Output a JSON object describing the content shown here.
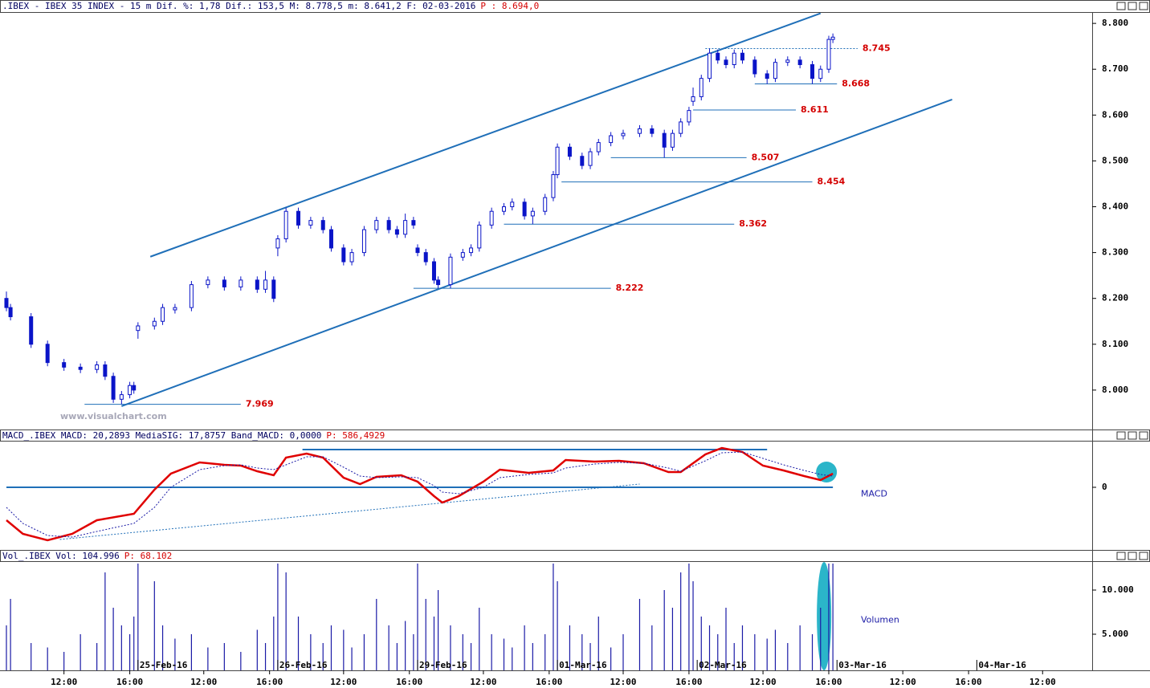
{
  "chart_data": [
    {
      "type": "candlestick",
      "title": ".IBEX - IBEX 35 INDEX -  15 m Dif. %: 1,78 Dif.: 153,5 M: 8.778,5 m: 8.641,2 F: 02-03-2016",
      "price_label": "P : 8.694,0",
      "watermark": "www.visualchart.com",
      "xlim": [
        -1.56,
        264.06
      ],
      "ylim": [
        7.914,
        8.823
      ],
      "yticks": [
        {
          "value": 8.0,
          "label": "8.000"
        },
        {
          "value": 8.1,
          "label": "8.100"
        },
        {
          "value": 8.2,
          "label": "8.200"
        },
        {
          "value": 8.3,
          "label": "8.300"
        },
        {
          "value": 8.4,
          "label": "8.400"
        },
        {
          "value": 8.5,
          "label": "8.500"
        },
        {
          "value": 8.6,
          "label": "8.600"
        },
        {
          "value": 8.7,
          "label": "8.700"
        },
        {
          "value": 8.8,
          "label": "8.800"
        }
      ],
      "up_color": "#ffffff",
      "down_color": "#0a14c8",
      "line_color": "#1f6fb8",
      "level_label_color": "#d40000",
      "x": [
        0,
        1,
        6,
        10,
        14,
        18,
        22,
        24,
        26,
        28,
        30,
        31,
        32,
        36,
        38,
        41,
        45,
        49,
        53,
        57,
        61,
        63,
        65,
        66,
        68,
        71,
        74,
        77,
        79,
        82,
        84,
        87,
        90,
        93,
        95,
        97,
        99,
        100,
        102,
        104,
        105,
        108,
        111,
        113,
        115,
        118,
        121,
        123,
        126,
        128,
        131,
        133,
        134,
        137,
        140,
        142,
        144,
        147,
        150,
        154,
        157,
        160,
        162,
        164,
        166,
        167,
        169,
        171,
        173,
        175,
        177,
        179,
        182,
        185,
        187,
        190,
        193,
        196,
        198,
        200,
        201
      ],
      "candles": [
        [
          8.2,
          8.215,
          8.172,
          8.18
        ],
        [
          8.18,
          8.188,
          8.152,
          8.16
        ],
        [
          8.16,
          8.168,
          8.092,
          8.1
        ],
        [
          8.1,
          8.108,
          8.052,
          8.06
        ],
        [
          8.06,
          8.068,
          8.042,
          8.05
        ],
        [
          8.05,
          8.058,
          8.037,
          8.045
        ],
        [
          8.045,
          8.063,
          8.037,
          8.055
        ],
        [
          8.055,
          8.063,
          8.022,
          8.03
        ],
        [
          8.03,
          8.038,
          7.972,
          7.98
        ],
        [
          7.98,
          7.998,
          7.969,
          7.99
        ],
        [
          7.99,
          8.018,
          7.982,
          8.01
        ],
        [
          8.01,
          8.018,
          7.992,
          8.0
        ],
        [
          8.13,
          8.148,
          8.112,
          8.14
        ],
        [
          8.14,
          8.158,
          8.132,
          8.15
        ],
        [
          8.15,
          8.188,
          8.142,
          8.18
        ],
        [
          8.175,
          8.188,
          8.167,
          8.18
        ],
        [
          8.18,
          8.238,
          8.172,
          8.23
        ],
        [
          8.23,
          8.248,
          8.222,
          8.24
        ],
        [
          8.24,
          8.248,
          8.217,
          8.225
        ],
        [
          8.225,
          8.248,
          8.217,
          8.24
        ],
        [
          8.24,
          8.248,
          8.212,
          8.22
        ],
        [
          8.22,
          8.26,
          8.212,
          8.24
        ],
        [
          8.24,
          8.248,
          8.192,
          8.2
        ],
        [
          8.31,
          8.338,
          8.292,
          8.33
        ],
        [
          8.33,
          8.398,
          8.322,
          8.39
        ],
        [
          8.39,
          8.398,
          8.352,
          8.36
        ],
        [
          8.36,
          8.378,
          8.352,
          8.37
        ],
        [
          8.37,
          8.378,
          8.342,
          8.35
        ],
        [
          8.35,
          8.358,
          8.302,
          8.31
        ],
        [
          8.31,
          8.318,
          8.272,
          8.28
        ],
        [
          8.28,
          8.308,
          8.272,
          8.3
        ],
        [
          8.3,
          8.358,
          8.292,
          8.35
        ],
        [
          8.35,
          8.378,
          8.342,
          8.37
        ],
        [
          8.37,
          8.378,
          8.342,
          8.35
        ],
        [
          8.35,
          8.358,
          8.332,
          8.34
        ],
        [
          8.34,
          8.385,
          8.332,
          8.37
        ],
        [
          8.37,
          8.378,
          8.352,
          8.36
        ],
        [
          8.31,
          8.318,
          8.292,
          8.3
        ],
        [
          8.3,
          8.308,
          8.272,
          8.28
        ],
        [
          8.28,
          8.288,
          8.232,
          8.24
        ],
        [
          8.24,
          8.248,
          8.222,
          8.23
        ],
        [
          8.23,
          8.298,
          8.222,
          8.29
        ],
        [
          8.29,
          8.308,
          8.282,
          8.3
        ],
        [
          8.3,
          8.318,
          8.292,
          8.31
        ],
        [
          8.31,
          8.368,
          8.302,
          8.36
        ],
        [
          8.36,
          8.398,
          8.352,
          8.39
        ],
        [
          8.39,
          8.408,
          8.382,
          8.4
        ],
        [
          8.4,
          8.418,
          8.392,
          8.41
        ],
        [
          8.41,
          8.418,
          8.372,
          8.38
        ],
        [
          8.38,
          8.398,
          8.362,
          8.39
        ],
        [
          8.39,
          8.428,
          8.382,
          8.42
        ],
        [
          8.42,
          8.478,
          8.412,
          8.47
        ],
        [
          8.47,
          8.538,
          8.462,
          8.53
        ],
        [
          8.53,
          8.538,
          8.502,
          8.51
        ],
        [
          8.51,
          8.518,
          8.482,
          8.49
        ],
        [
          8.49,
          8.528,
          8.482,
          8.52
        ],
        [
          8.52,
          8.548,
          8.512,
          8.54
        ],
        [
          8.54,
          8.563,
          8.532,
          8.555
        ],
        [
          8.555,
          8.568,
          8.547,
          8.56
        ],
        [
          8.56,
          8.578,
          8.552,
          8.57
        ],
        [
          8.57,
          8.578,
          8.552,
          8.56
        ],
        [
          8.56,
          8.568,
          8.507,
          8.53
        ],
        [
          8.53,
          8.568,
          8.522,
          8.56
        ],
        [
          8.56,
          8.593,
          8.552,
          8.585
        ],
        [
          8.585,
          8.618,
          8.577,
          8.61
        ],
        [
          8.63,
          8.66,
          8.62,
          8.64
        ],
        [
          8.64,
          8.688,
          8.632,
          8.68
        ],
        [
          8.68,
          8.745,
          8.672,
          8.735
        ],
        [
          8.735,
          8.743,
          8.712,
          8.72
        ],
        [
          8.72,
          8.728,
          8.702,
          8.71
        ],
        [
          8.71,
          8.743,
          8.702,
          8.735
        ],
        [
          8.735,
          8.743,
          8.712,
          8.72
        ],
        [
          8.72,
          8.728,
          8.682,
          8.69
        ],
        [
          8.69,
          8.698,
          8.668,
          8.68
        ],
        [
          8.68,
          8.723,
          8.672,
          8.715
        ],
        [
          8.715,
          8.728,
          8.707,
          8.72
        ],
        [
          8.72,
          8.728,
          8.702,
          8.71
        ],
        [
          8.71,
          8.718,
          8.668,
          8.68
        ],
        [
          8.68,
          8.708,
          8.672,
          8.7
        ],
        [
          8.7,
          8.773,
          8.692,
          8.765
        ],
        [
          8.765,
          8.778,
          8.757,
          8.77
        ]
      ],
      "lines": [
        {
          "points": [
            [
              35,
              8.291
            ],
            [
              198,
              8.822
            ]
          ],
          "dash": false
        },
        {
          "points": [
            [
              28,
              7.965
            ],
            [
              230,
              8.634
            ]
          ],
          "dash": false
        }
      ],
      "levels": [
        {
          "value": 7.969,
          "x": [
            19,
            57
          ]
        },
        {
          "value": 8.222,
          "x": [
            99,
            147
          ]
        },
        {
          "value": 8.362,
          "x": [
            121,
            177
          ]
        },
        {
          "value": 8.454,
          "x": [
            135,
            196
          ]
        },
        {
          "value": 8.507,
          "x": [
            147,
            180
          ]
        },
        {
          "value": 8.611,
          "x": [
            167,
            192
          ]
        },
        {
          "value": 8.668,
          "x": [
            182,
            202
          ]
        },
        {
          "value": 8.745,
          "x": [
            170,
            207
          ],
          "dash": true
        }
      ]
    },
    {
      "type": "line",
      "title": "MACD_.IBEX MACD: 20,2893 MediaSIG: 17,8757 Band_MACD: 0,0000",
      "price_label": "P: 586,4929",
      "annotation": "MACD",
      "highlight_color": "#2bb5c9",
      "line_color": "#1f6fb8",
      "xlim": [
        -1.56,
        264.06
      ],
      "ylim": [
        -78,
        57
      ],
      "yticks": [
        0
      ],
      "x": [
        0,
        4,
        10,
        16,
        22,
        31,
        36,
        40,
        47,
        53,
        57,
        61,
        65,
        68,
        73,
        77,
        82,
        86,
        90,
        96,
        100,
        104,
        106,
        110,
        116,
        120,
        127,
        133,
        136,
        143,
        149,
        155,
        161,
        164,
        170,
        174,
        179,
        184,
        189,
        194,
        198,
        201
      ],
      "series": [
        {
          "color": "#e00000",
          "dash": false,
          "values": [
            -41,
            -58,
            -66,
            -58,
            -41,
            -33,
            -3,
            17,
            31,
            28,
            27,
            20,
            15,
            37,
            42,
            37,
            12,
            4,
            13,
            15,
            7,
            -11,
            -19,
            -11,
            7,
            22,
            18,
            21,
            34,
            32,
            33,
            30,
            19,
            19,
            41,
            49,
            44,
            27,
            21,
            14,
            9,
            17
          ]
        },
        {
          "color": "#1a1aa6",
          "dash": true,
          "values": [
            -25,
            -45,
            -60,
            -62,
            -55,
            -45,
            -25,
            0,
            22,
            27,
            28,
            24,
            22,
            28,
            38,
            38,
            25,
            14,
            12,
            13,
            12,
            2,
            -6,
            -8,
            0,
            12,
            16,
            18,
            24,
            29,
            31,
            30,
            24,
            20,
            33,
            43,
            44,
            36,
            28,
            21,
            16,
            14
          ]
        }
      ],
      "lines": [
        {
          "points": [
            [
              72,
              47
            ],
            [
              185,
              47
            ]
          ],
          "dash": false
        },
        {
          "points": [
            [
              0,
              0
            ],
            [
              201,
              0
            ]
          ],
          "dash": false
        },
        {
          "points": [
            [
              13,
              -65
            ],
            [
              154,
              4
            ]
          ],
          "dash": true
        }
      ]
    },
    {
      "type": "bar",
      "title": "Vol_.IBEX Vol: 104.996",
      "price_label": "P: 68.102",
      "annotation": "Volumen",
      "color": "#1a1aa6",
      "highlight_color": "#2bb5c9",
      "xlim": [
        -1.56,
        264.06
      ],
      "ylim": [
        909,
        13182
      ],
      "yticks": [
        {
          "value": 5000,
          "label": "5.000"
        },
        {
          "value": 10000,
          "label": "10.000"
        }
      ],
      "x": [
        0,
        1,
        6,
        10,
        14,
        18,
        22,
        24,
        26,
        28,
        30,
        31,
        32,
        36,
        38,
        41,
        45,
        49,
        53,
        57,
        61,
        63,
        65,
        66,
        68,
        71,
        74,
        77,
        79,
        82,
        84,
        87,
        90,
        93,
        95,
        97,
        99,
        100,
        102,
        104,
        105,
        108,
        111,
        113,
        115,
        118,
        121,
        123,
        126,
        128,
        131,
        133,
        134,
        137,
        140,
        142,
        144,
        147,
        150,
        154,
        157,
        160,
        162,
        164,
        166,
        167,
        169,
        171,
        173,
        175,
        177,
        179,
        182,
        185,
        187,
        190,
        193,
        196,
        198,
        200,
        201
      ],
      "values": [
        6000,
        9000,
        4000,
        3500,
        3000,
        5000,
        4000,
        12000,
        8000,
        6000,
        5000,
        7000,
        13000,
        11000,
        6000,
        4500,
        5000,
        3500,
        4000,
        3000,
        5500,
        4000,
        7000,
        13000,
        12000,
        7000,
        5000,
        4000,
        6000,
        5500,
        3500,
        5000,
        9000,
        6000,
        4000,
        6500,
        5000,
        13000,
        9000,
        7000,
        10000,
        6000,
        5000,
        4000,
        8000,
        5000,
        4500,
        3500,
        6000,
        4000,
        5000,
        13000,
        11000,
        6000,
        5000,
        4000,
        7000,
        3500,
        5000,
        9000,
        6000,
        10000,
        8000,
        12000,
        13000,
        11000,
        7000,
        6000,
        5000,
        8000,
        4000,
        6000,
        5000,
        4500,
        5500,
        4000,
        6000,
        5000,
        8000,
        13000,
        13000
      ],
      "xticks": [
        {
          "value": 14,
          "label": "12:00"
        },
        {
          "value": 30,
          "label": "16:00"
        },
        {
          "value": 48,
          "label": "12:00"
        },
        {
          "value": 64,
          "label": "16:00"
        },
        {
          "value": 82,
          "label": "12:00"
        },
        {
          "value": 98,
          "label": "16:00"
        },
        {
          "value": 116,
          "label": "12:00"
        },
        {
          "value": 132,
          "label": "16:00"
        },
        {
          "value": 150,
          "label": "12:00"
        },
        {
          "value": 166,
          "label": "16:00"
        },
        {
          "value": 184,
          "label": "12:00"
        },
        {
          "value": 200,
          "label": "16:00"
        },
        {
          "value": 218,
          "label": "12:00"
        },
        {
          "value": 234,
          "label": "16:00"
        },
        {
          "value": 252,
          "label": "12:00"
        }
      ],
      "date_ticks": [
        {
          "value": 32,
          "label": "25-Feb-16"
        },
        {
          "value": 66,
          "label": "26-Feb-16"
        },
        {
          "value": 100,
          "label": "29-Feb-16"
        },
        {
          "value": 134,
          "label": "01-Mar-16"
        },
        {
          "value": 168,
          "label": "02-Mar-16"
        },
        {
          "value": 202,
          "label": "03-Mar-16"
        },
        {
          "value": 236,
          "label": "04-Mar-16"
        }
      ]
    }
  ]
}
